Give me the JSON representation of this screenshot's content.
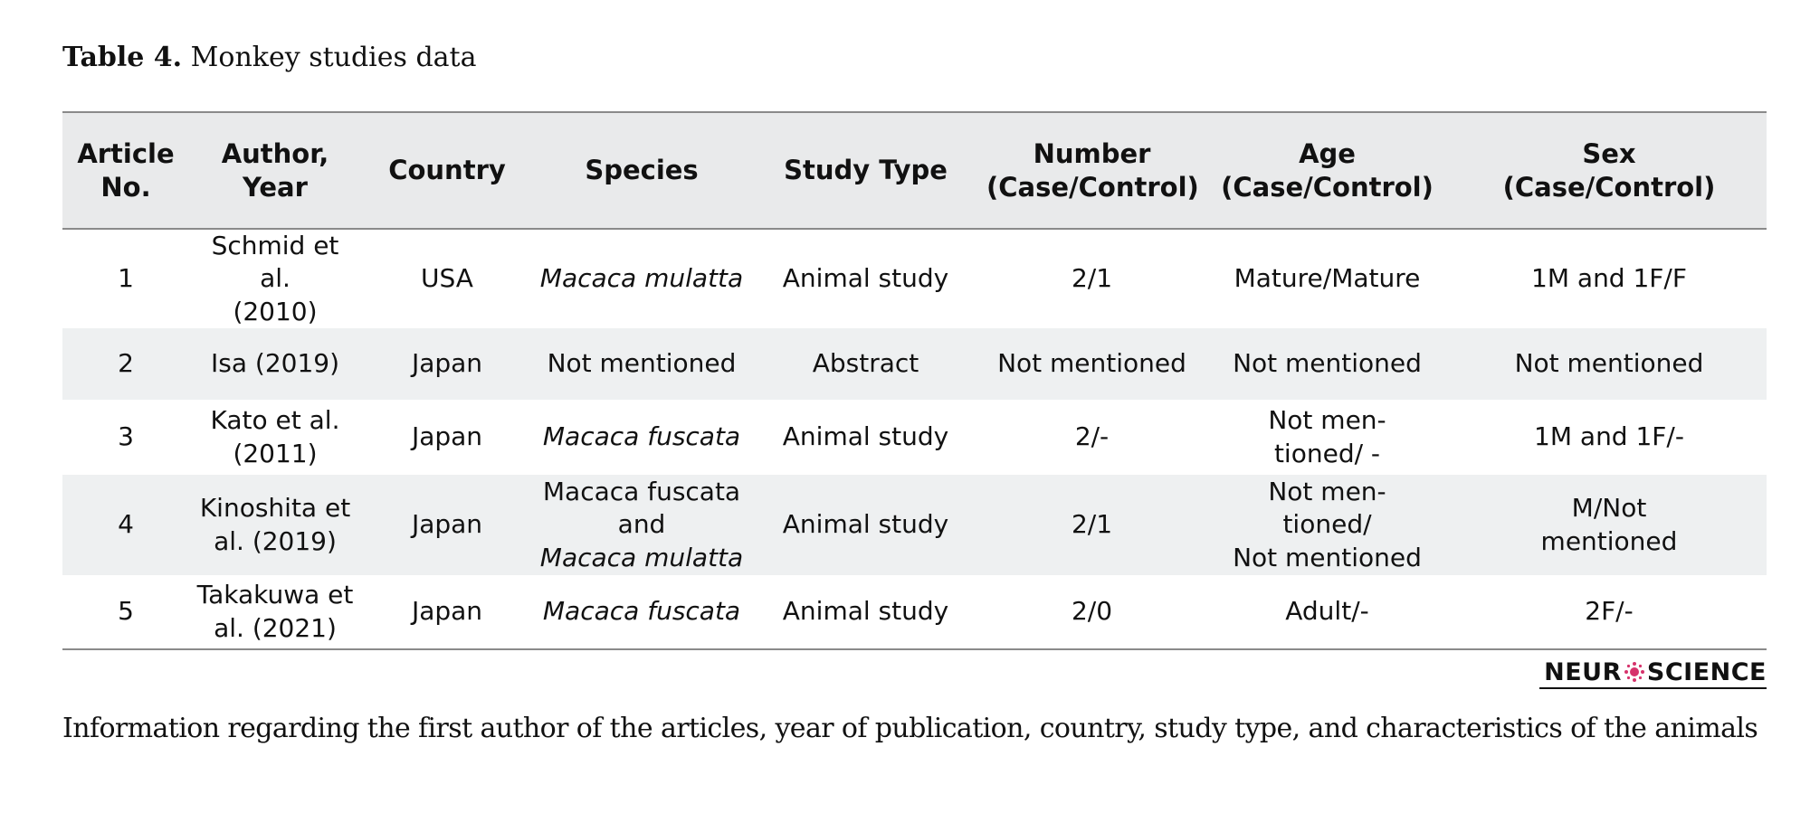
{
  "caption": {
    "label": "Table 4.",
    "title": "Monkey studies data"
  },
  "table": {
    "headers": [
      [
        "Article",
        "No."
      ],
      [
        "Author, Year"
      ],
      [
        "Country"
      ],
      [
        "Species"
      ],
      [
        "Study Type"
      ],
      [
        "Number",
        "(Case/Control)"
      ],
      [
        "Age",
        "(Case/Control)"
      ],
      [
        "Sex",
        "(Case/Control)"
      ]
    ],
    "rows": [
      {
        "no": "1",
        "author": [
          "Schmid et al.",
          "(2010)"
        ],
        "country": "USA",
        "species": [
          {
            "text": "Macaca mulatta",
            "italic": true
          }
        ],
        "study_type": "Animal study",
        "number": "2/1",
        "age": [
          "Mature/Mature"
        ],
        "sex": [
          "1M and 1F/F"
        ]
      },
      {
        "no": "2",
        "author": [
          "Isa (2019)"
        ],
        "country": "Japan",
        "species": [
          {
            "text": "Not mentioned",
            "italic": false
          }
        ],
        "study_type": "Abstract",
        "number": "Not mentioned",
        "age": [
          "Not mentioned"
        ],
        "sex": [
          "Not mentioned"
        ]
      },
      {
        "no": "3",
        "author": [
          "Kato et al.",
          "(2011)"
        ],
        "country": "Japan",
        "species": [
          {
            "text": "Macaca fuscata",
            "italic": true
          }
        ],
        "study_type": "Animal study",
        "number": "2/-",
        "age": [
          "Not men-",
          "tioned/ -"
        ],
        "sex": [
          "1M and 1F/-"
        ]
      },
      {
        "no": "4",
        "author": [
          "Kinoshita et",
          "al. (2019)"
        ],
        "country": "Japan",
        "species": [
          {
            "text": "Macaca fuscata",
            "italic": false
          },
          {
            "text": "and",
            "italic": false
          },
          {
            "text": "Macaca mulatta",
            "italic": true
          }
        ],
        "study_type": "Animal study",
        "number": "2/1",
        "age": [
          "Not men-",
          "tioned/",
          "Not mentioned"
        ],
        "sex": [
          "M/Not",
          "mentioned"
        ]
      },
      {
        "no": "5",
        "author": [
          "Takakuwa et",
          "al. (2021)"
        ],
        "country": "Japan",
        "species": [
          {
            "text": "Macaca fuscata",
            "italic": true
          }
        ],
        "study_type": "Animal study",
        "number": "2/0",
        "age": [
          "Adult/-"
        ],
        "sex": [
          "2F/-"
        ]
      }
    ]
  },
  "logo": {
    "left": "NEUR",
    "right": "SCIENCE"
  },
  "footnote": "Information regarding the first author of the articles, year of publication, country, study type, and characteristics of the animals",
  "colors": {
    "header_bg": "#e9eaeb",
    "stripe_bg": "#eef0f1",
    "author_link": "#3c5aa8",
    "logo_accent": "#d6336c"
  }
}
